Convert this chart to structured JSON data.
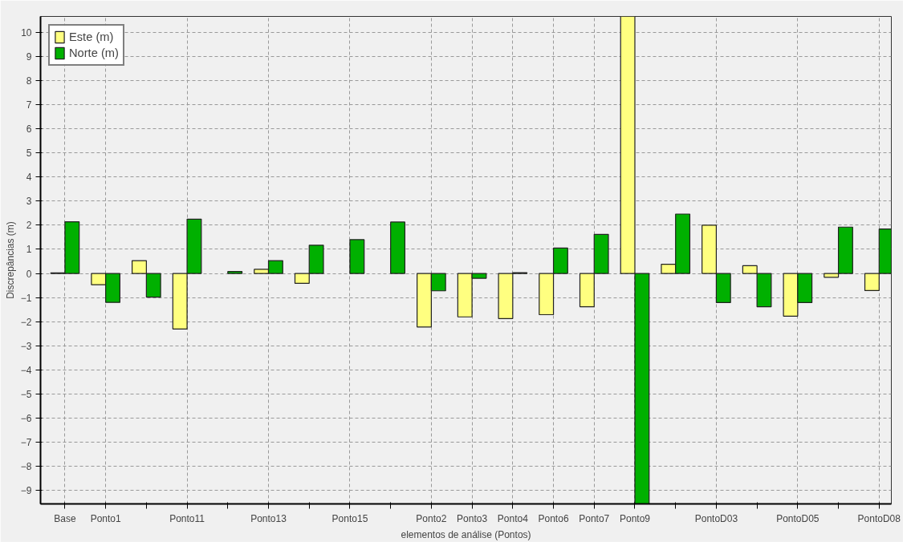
{
  "chart_data": {
    "type": "bar",
    "xlabel": "elementos de análise (Pontos)",
    "ylabel": "Discrepâncias (m)",
    "categories": [
      "Base",
      "Ponto1",
      null,
      "Ponto11",
      null,
      "Ponto13",
      null,
      "Ponto15",
      null,
      "Ponto2",
      "Ponto3",
      "Ponto4",
      "Ponto6",
      "Ponto7",
      "Ponto9",
      null,
      "PontoD03",
      null,
      "PontoD05",
      null,
      "PontoD08"
    ],
    "series": [
      {
        "name": "Este (m)",
        "color": "#ffff80",
        "values": [
          0.02,
          -0.47,
          0.53,
          -2.3,
          null,
          0.17,
          -0.41,
          null,
          null,
          -2.22,
          -1.8,
          -1.87,
          -1.71,
          -1.38,
          10.65,
          0.38,
          2.0,
          0.32,
          -1.77,
          -0.16,
          -0.71
        ]
      },
      {
        "name": "Norte (m)",
        "color": "#00b000",
        "values": [
          2.14,
          -1.2,
          -0.98,
          2.25,
          0.08,
          0.53,
          1.17,
          1.4,
          2.13,
          -0.72,
          -0.2,
          0.03,
          1.05,
          1.62,
          -9.55,
          2.46,
          -1.21,
          -1.38,
          -1.21,
          1.92,
          1.84
        ]
      }
    ],
    "ylim": [
      -9.55,
      10.65
    ],
    "yticks": [
      -9,
      -8,
      -7,
      -6,
      -5,
      -4,
      -3,
      -2,
      -1,
      0,
      1,
      2,
      3,
      4,
      5,
      6,
      7,
      8,
      9,
      10
    ],
    "grid": true,
    "legend": "top left"
  }
}
